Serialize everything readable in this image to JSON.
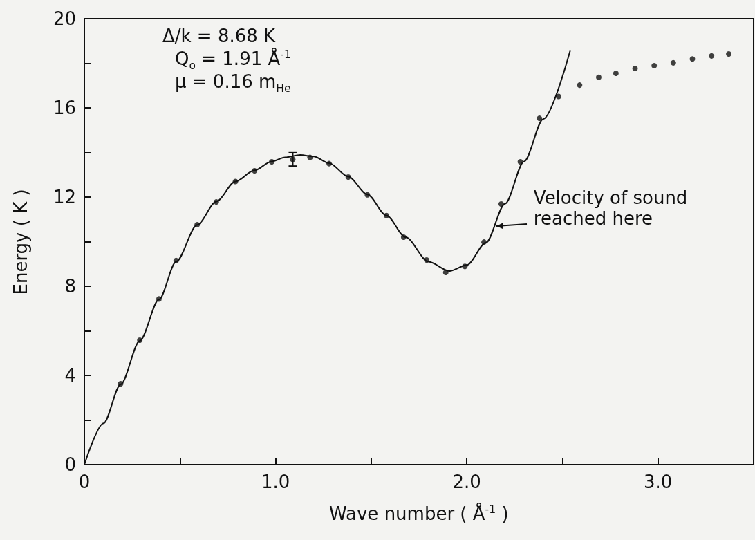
{
  "chart_data": {
    "type": "scatter",
    "xlabel": "Wave number  ( Å$^{-1}$ )",
    "ylabel": "Energy  ( K )",
    "xlim": [
      0,
      3.5
    ],
    "ylim": [
      0,
      20
    ],
    "xticks": [
      0,
      {
        "value": 0.5,
        "label": null
      },
      {
        "value": 1,
        "label": "1.0"
      },
      {
        "value": 1.5,
        "label": null
      },
      {
        "value": 2,
        "label": "2.0"
      },
      {
        "value": 2.5,
        "label": null
      },
      {
        "value": 3,
        "label": "3.0"
      }
    ],
    "yticks": [
      0,
      {
        "value": 2,
        "label": null
      },
      4,
      {
        "value": 6,
        "label": null
      },
      8,
      {
        "value": 10,
        "label": null
      },
      12,
      {
        "value": 14,
        "label": null
      },
      16,
      {
        "value": 18,
        "label": null
      },
      20
    ],
    "grid": false,
    "annotations": [
      "Δ/k = 8.68 K",
      "Q$_{o}$ = 1.91 Å$^{-1}$",
      "μ  = 0.16 m$_{He}$",
      {
        "text": "Velocity of sound reached here",
        "x": 2.14,
        "y": 10.7
      }
    ],
    "series": [
      {
        "marker": "circle",
        "color": "#111111",
        "x": [
          0.19,
          0.29,
          0.39,
          0.48,
          0.59,
          0.69,
          0.79,
          0.89,
          0.98,
          1.09,
          1.18,
          1.28,
          1.38,
          1.48,
          1.58,
          1.67,
          1.79,
          1.89,
          1.99,
          2.09,
          2.18,
          2.28,
          2.38,
          2.48,
          2.59,
          2.69,
          2.78,
          2.88,
          2.98,
          3.08,
          3.18,
          3.28,
          3.37
        ],
        "values": [
          3.63,
          5.58,
          7.43,
          9.15,
          10.76,
          11.78,
          12.7,
          13.18,
          13.58,
          13.69,
          13.78,
          13.5,
          12.9,
          12.1,
          11.17,
          10.2,
          9.18,
          8.62,
          8.89,
          9.98,
          11.69,
          13.58,
          15.53,
          16.51,
          17.02,
          17.37,
          17.55,
          17.77,
          17.89,
          18.02,
          18.19,
          18.33,
          18.42
        ],
        "errors": [
          null,
          null,
          null,
          null,
          null,
          null,
          null,
          null,
          null,
          0.3,
          null,
          null,
          null,
          null,
          null,
          null,
          null,
          null,
          null,
          null,
          null,
          null,
          null,
          null,
          null,
          null,
          null,
          null,
          null,
          null,
          null,
          null,
          null
        ]
      },
      {
        "type": "line",
        "marker": "none",
        "line_style": "solid",
        "color": "#111111",
        "x": [
          0,
          0.1,
          0.19,
          0.29,
          0.39,
          0.48,
          0.59,
          0.69,
          0.79,
          0.89,
          0.98,
          1.05,
          1.13,
          1.2,
          1.28,
          1.38,
          1.48,
          1.58,
          1.68,
          1.8,
          1.91,
          2.0,
          2.1,
          2.2,
          2.3,
          2.4,
          2.54
        ],
        "values": [
          0,
          1.85,
          3.6,
          5.55,
          7.4,
          9.1,
          10.75,
          11.8,
          12.7,
          13.2,
          13.6,
          13.78,
          13.89,
          13.82,
          13.52,
          12.92,
          12.12,
          11.17,
          10.2,
          9.1,
          8.68,
          8.95,
          9.95,
          11.7,
          13.6,
          15.5,
          18.54
        ]
      }
    ]
  }
}
